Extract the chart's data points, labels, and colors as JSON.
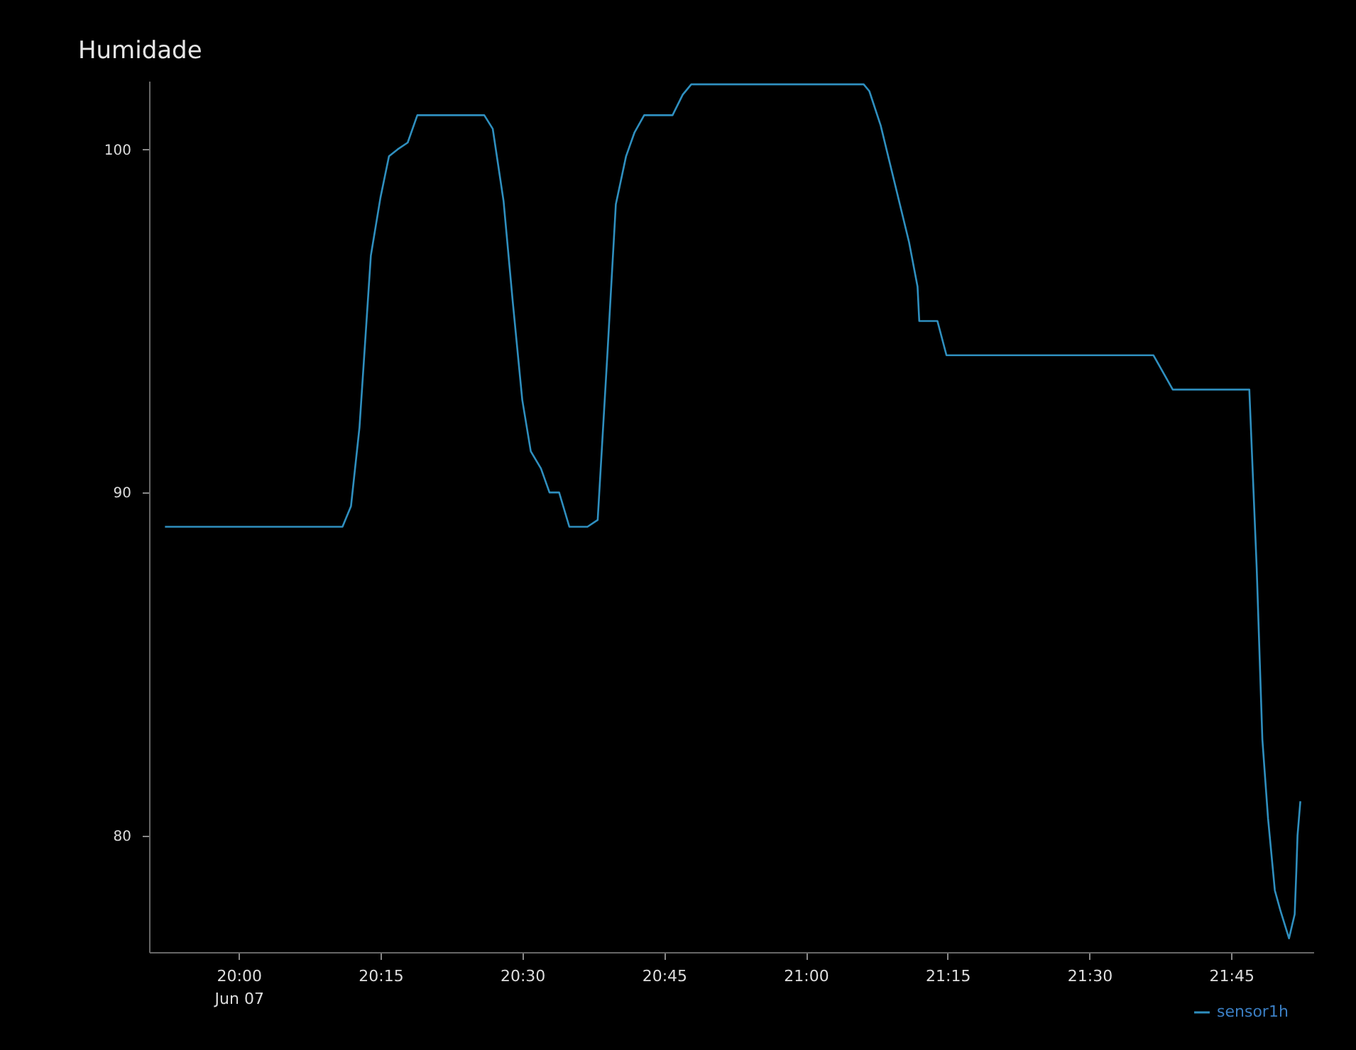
{
  "chart_data": {
    "type": "line",
    "title": "Humidade",
    "x": [
      19.87,
      20.183,
      20.198,
      20.213,
      20.233,
      20.25,
      20.265,
      20.28,
      20.298,
      20.315,
      20.433,
      20.448,
      20.467,
      20.483,
      20.5,
      20.515,
      20.533,
      20.548,
      20.565,
      20.583,
      20.615,
      20.633,
      20.65,
      20.665,
      20.683,
      20.698,
      20.715,
      20.765,
      20.783,
      20.798,
      21.102,
      21.112,
      21.132,
      21.182,
      21.197,
      21.2,
      21.232,
      21.248,
      21.613,
      21.647,
      21.782,
      21.795,
      21.805,
      21.815,
      21.827,
      21.837,
      21.852,
      21.862,
      21.865,
      21.867,
      21.872
    ],
    "series": [
      {
        "name": "sensor1h",
        "color": "#2f8fbf",
        "values": [
          89.0,
          89.0,
          89.6,
          91.9,
          96.9,
          98.6,
          99.8,
          100.0,
          100.2,
          101.0,
          101.0,
          100.6,
          98.5,
          95.6,
          92.7,
          91.2,
          90.7,
          90.0,
          90.0,
          89.0,
          89.0,
          89.2,
          94.0,
          98.4,
          99.8,
          100.5,
          101.0,
          101.0,
          101.6,
          101.9,
          101.9,
          101.7,
          100.7,
          97.3,
          96.0,
          95.0,
          95.0,
          94.0,
          94.0,
          93.0,
          93.0,
          87.8,
          82.8,
          80.5,
          78.4,
          77.8,
          77.0,
          77.7,
          79.0,
          80.0,
          81.0
        ]
      }
    ],
    "xlim": [
      19.842,
      21.895
    ],
    "xticks": [
      {
        "value": 20,
        "label": "20:00\nJun 07"
      },
      {
        "value": 20.25,
        "label": "20:15"
      },
      {
        "value": 20.5,
        "label": "20:30"
      },
      {
        "value": 20.75,
        "label": "20:45"
      },
      {
        "value": 21,
        "label": "21:00"
      },
      {
        "value": 21.25,
        "label": "21:15"
      },
      {
        "value": 21.5,
        "label": "21:30"
      },
      {
        "value": 21.75,
        "label": "21:45"
      }
    ],
    "ylim": [
      76.6,
      102
    ],
    "yticks": [
      80,
      90,
      100
    ],
    "grid": false,
    "legend": "bottom right",
    "marker": "none",
    "line_style": "solid"
  }
}
